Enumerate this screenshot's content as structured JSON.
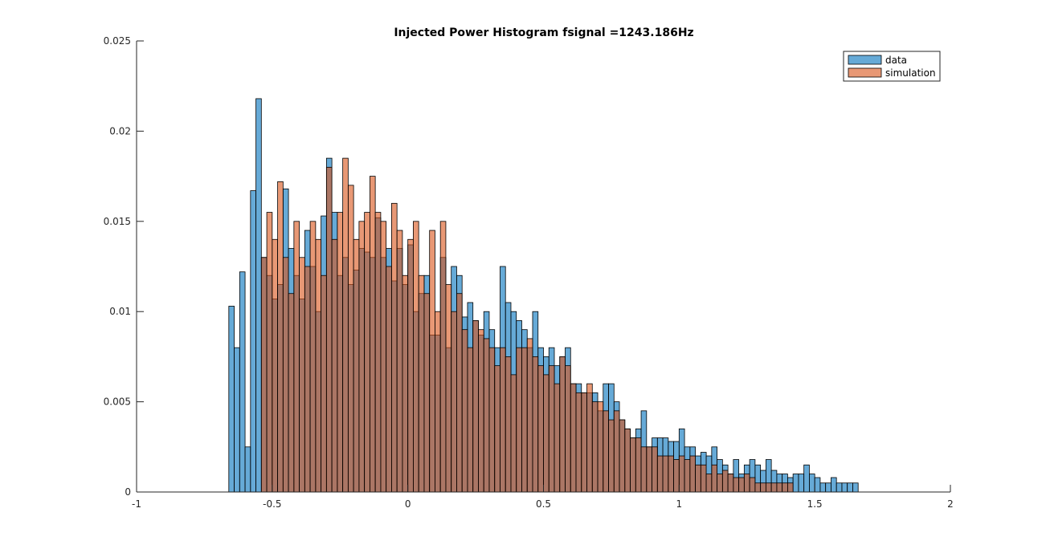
{
  "chart_data": {
    "type": "bar",
    "subtype": "histogram",
    "title": "Injected Power Histogram fsignal =1243.186Hz",
    "xlabel": "",
    "ylabel": "",
    "xlim": [
      -1,
      2
    ],
    "ylim": [
      0,
      0.025
    ],
    "x_ticks": [
      "-1",
      "-0.5",
      "0",
      "0.5",
      "1",
      "1.5",
      "2"
    ],
    "y_ticks": [
      "0",
      "0.005",
      "0.01",
      "0.015",
      "0.02",
      "0.025"
    ],
    "bin_start": -0.66,
    "bin_width": 0.02,
    "legend_position": "top-right",
    "series": [
      {
        "name": "data",
        "color": "#0072BD",
        "values": [
          0.0103,
          0.008,
          0.0122,
          0.0025,
          0.0167,
          0.0218,
          0.013,
          0.012,
          0.0107,
          0.0115,
          0.0168,
          0.0135,
          0.012,
          0.0107,
          0.0145,
          0.0125,
          0.01,
          0.0153,
          0.0185,
          0.0155,
          0.012,
          0.013,
          0.0115,
          0.0123,
          0.0135,
          0.0133,
          0.013,
          0.0152,
          0.013,
          0.0135,
          0.0117,
          0.0135,
          0.0115,
          0.0137,
          0.01,
          0.011,
          0.012,
          0.0087,
          0.0087,
          0.013,
          0.008,
          0.0125,
          0.012,
          0.0097,
          0.0105,
          0.0095,
          0.0087,
          0.01,
          0.009,
          0.008,
          0.0125,
          0.0105,
          0.01,
          0.0095,
          0.009,
          0.008,
          0.01,
          0.008,
          0.0075,
          0.008,
          0.007,
          0.0075,
          0.008,
          0.006,
          0.006,
          0.0055,
          0.0055,
          0.0055,
          0.0045,
          0.006,
          0.006,
          0.005,
          0.004,
          0.0035,
          0.003,
          0.0035,
          0.0045,
          0.0025,
          0.003,
          0.003,
          0.003,
          0.0028,
          0.0028,
          0.0035,
          0.0025,
          0.0025,
          0.002,
          0.0022,
          0.002,
          0.0025,
          0.0018,
          0.0015,
          0.001,
          0.0018,
          0.001,
          0.0015,
          0.0018,
          0.0015,
          0.0012,
          0.0018,
          0.0012,
          0.001,
          0.001,
          0.0008,
          0.001,
          0.001,
          0.0015,
          0.001,
          0.0008,
          0.0005,
          0.0005,
          0.0008,
          0.0005,
          0.0005,
          0.0005,
          0.0005,
          0.0,
          0.0,
          0.0,
          0.0,
          0.0,
          0.0,
          0.0,
          0.0,
          0.0,
          0.0,
          0.0,
          0.0,
          0.0,
          0.0,
          0.0,
          0.0,
          0.0,
          0.0,
          0.0,
          0.0,
          0.0,
          0.0,
          0.0,
          0.0,
          0.0,
          0.0,
          0.0,
          0.0,
          0.0,
          0.0,
          0.0,
          0.0,
          0.0,
          0.0,
          0.0,
          0.0,
          0.0,
          0.0,
          0.0,
          0.0,
          0.0,
          0.0,
          0.0,
          0.0,
          0.0,
          0.0,
          0.0,
          0.0,
          0.0,
          0.0,
          0.0,
          0.0,
          0.0,
          0.0,
          0.0,
          0.0,
          0.0,
          0.0,
          0.0,
          0.0,
          0.0,
          0.0,
          0.0,
          0.0,
          0.0,
          0.0,
          0.0,
          0.0,
          0.0,
          0.0,
          0.0,
          0.0,
          0.0,
          0.0,
          0.0,
          0.0,
          0.0,
          0.0,
          0.0,
          0.0,
          0.0,
          0.0,
          0.0,
          0.0,
          0.0,
          0.0,
          0.0,
          0.0,
          0.0,
          0.0,
          0.0,
          0.0,
          0.0,
          0.0,
          0.0,
          0.0,
          0.0,
          0.0,
          0.0,
          0.0,
          0.0,
          0.0,
          0.0
        ]
      },
      {
        "name": "simulation",
        "color": "#D95319",
        "values": [
          0.0,
          0.0,
          0.0,
          0.0,
          0.0,
          0.0,
          0.013,
          0.0155,
          0.014,
          0.0172,
          0.013,
          0.011,
          0.015,
          0.013,
          0.0125,
          0.015,
          0.014,
          0.012,
          0.018,
          0.014,
          0.0155,
          0.0185,
          0.017,
          0.014,
          0.015,
          0.0155,
          0.0175,
          0.0155,
          0.015,
          0.0125,
          0.016,
          0.0145,
          0.012,
          0.014,
          0.015,
          0.012,
          0.011,
          0.0145,
          0.01,
          0.015,
          0.0115,
          0.01,
          0.011,
          0.009,
          0.008,
          0.0095,
          0.009,
          0.0085,
          0.008,
          0.007,
          0.008,
          0.0075,
          0.0065,
          0.008,
          0.008,
          0.0085,
          0.0075,
          0.007,
          0.0065,
          0.007,
          0.006,
          0.0075,
          0.007,
          0.006,
          0.0055,
          0.0055,
          0.006,
          0.005,
          0.005,
          0.0045,
          0.004,
          0.0045,
          0.004,
          0.0035,
          0.003,
          0.003,
          0.0025,
          0.0025,
          0.0025,
          0.002,
          0.002,
          0.002,
          0.0018,
          0.002,
          0.0018,
          0.002,
          0.0015,
          0.0015,
          0.001,
          0.0015,
          0.001,
          0.0012,
          0.001,
          0.0008,
          0.0008,
          0.001,
          0.0008,
          0.0005,
          0.0005,
          0.0005,
          0.0005,
          0.0005,
          0.0005,
          0.0005,
          0.0,
          0.0,
          0.0,
          0.0,
          0.0,
          0.0,
          0.0,
          0.0,
          0.0,
          0.0,
          0.0,
          0.0,
          0.0,
          0.0,
          0.0,
          0.0,
          0.0,
          0.0,
          0.0,
          0.0,
          0.0,
          0.0,
          0.0,
          0.0,
          0.0,
          0.0,
          0.0,
          0.0,
          0.0,
          0.0,
          0.0,
          0.0,
          0.0,
          0.0,
          0.0,
          0.0,
          0.0,
          0.0,
          0.0,
          0.0,
          0.0,
          0.0,
          0.0,
          0.0,
          0.0,
          0.0,
          0.0,
          0.0,
          0.0,
          0.0,
          0.0,
          0.0,
          0.0,
          0.0,
          0.0,
          0.0,
          0.0,
          0.0,
          0.0,
          0.0,
          0.0,
          0.0,
          0.0,
          0.0,
          0.0,
          0.0,
          0.0,
          0.0,
          0.0,
          0.0,
          0.0,
          0.0,
          0.0,
          0.0,
          0.0,
          0.0,
          0.0,
          0.0,
          0.0,
          0.0,
          0.0,
          0.0,
          0.0,
          0.0,
          0.0,
          0.0,
          0.0,
          0.0,
          0.0,
          0.0,
          0.0,
          0.0,
          0.0,
          0.0,
          0.0,
          0.0,
          0.0,
          0.0,
          0.0,
          0.0,
          0.0,
          0.0,
          0.0,
          0.0,
          0.0,
          0.0,
          0.0,
          0.0,
          0.0,
          0.0,
          0.0,
          0.0,
          0.0,
          0.0,
          0.0,
          0.0,
          0.0,
          0.0
        ]
      }
    ]
  }
}
